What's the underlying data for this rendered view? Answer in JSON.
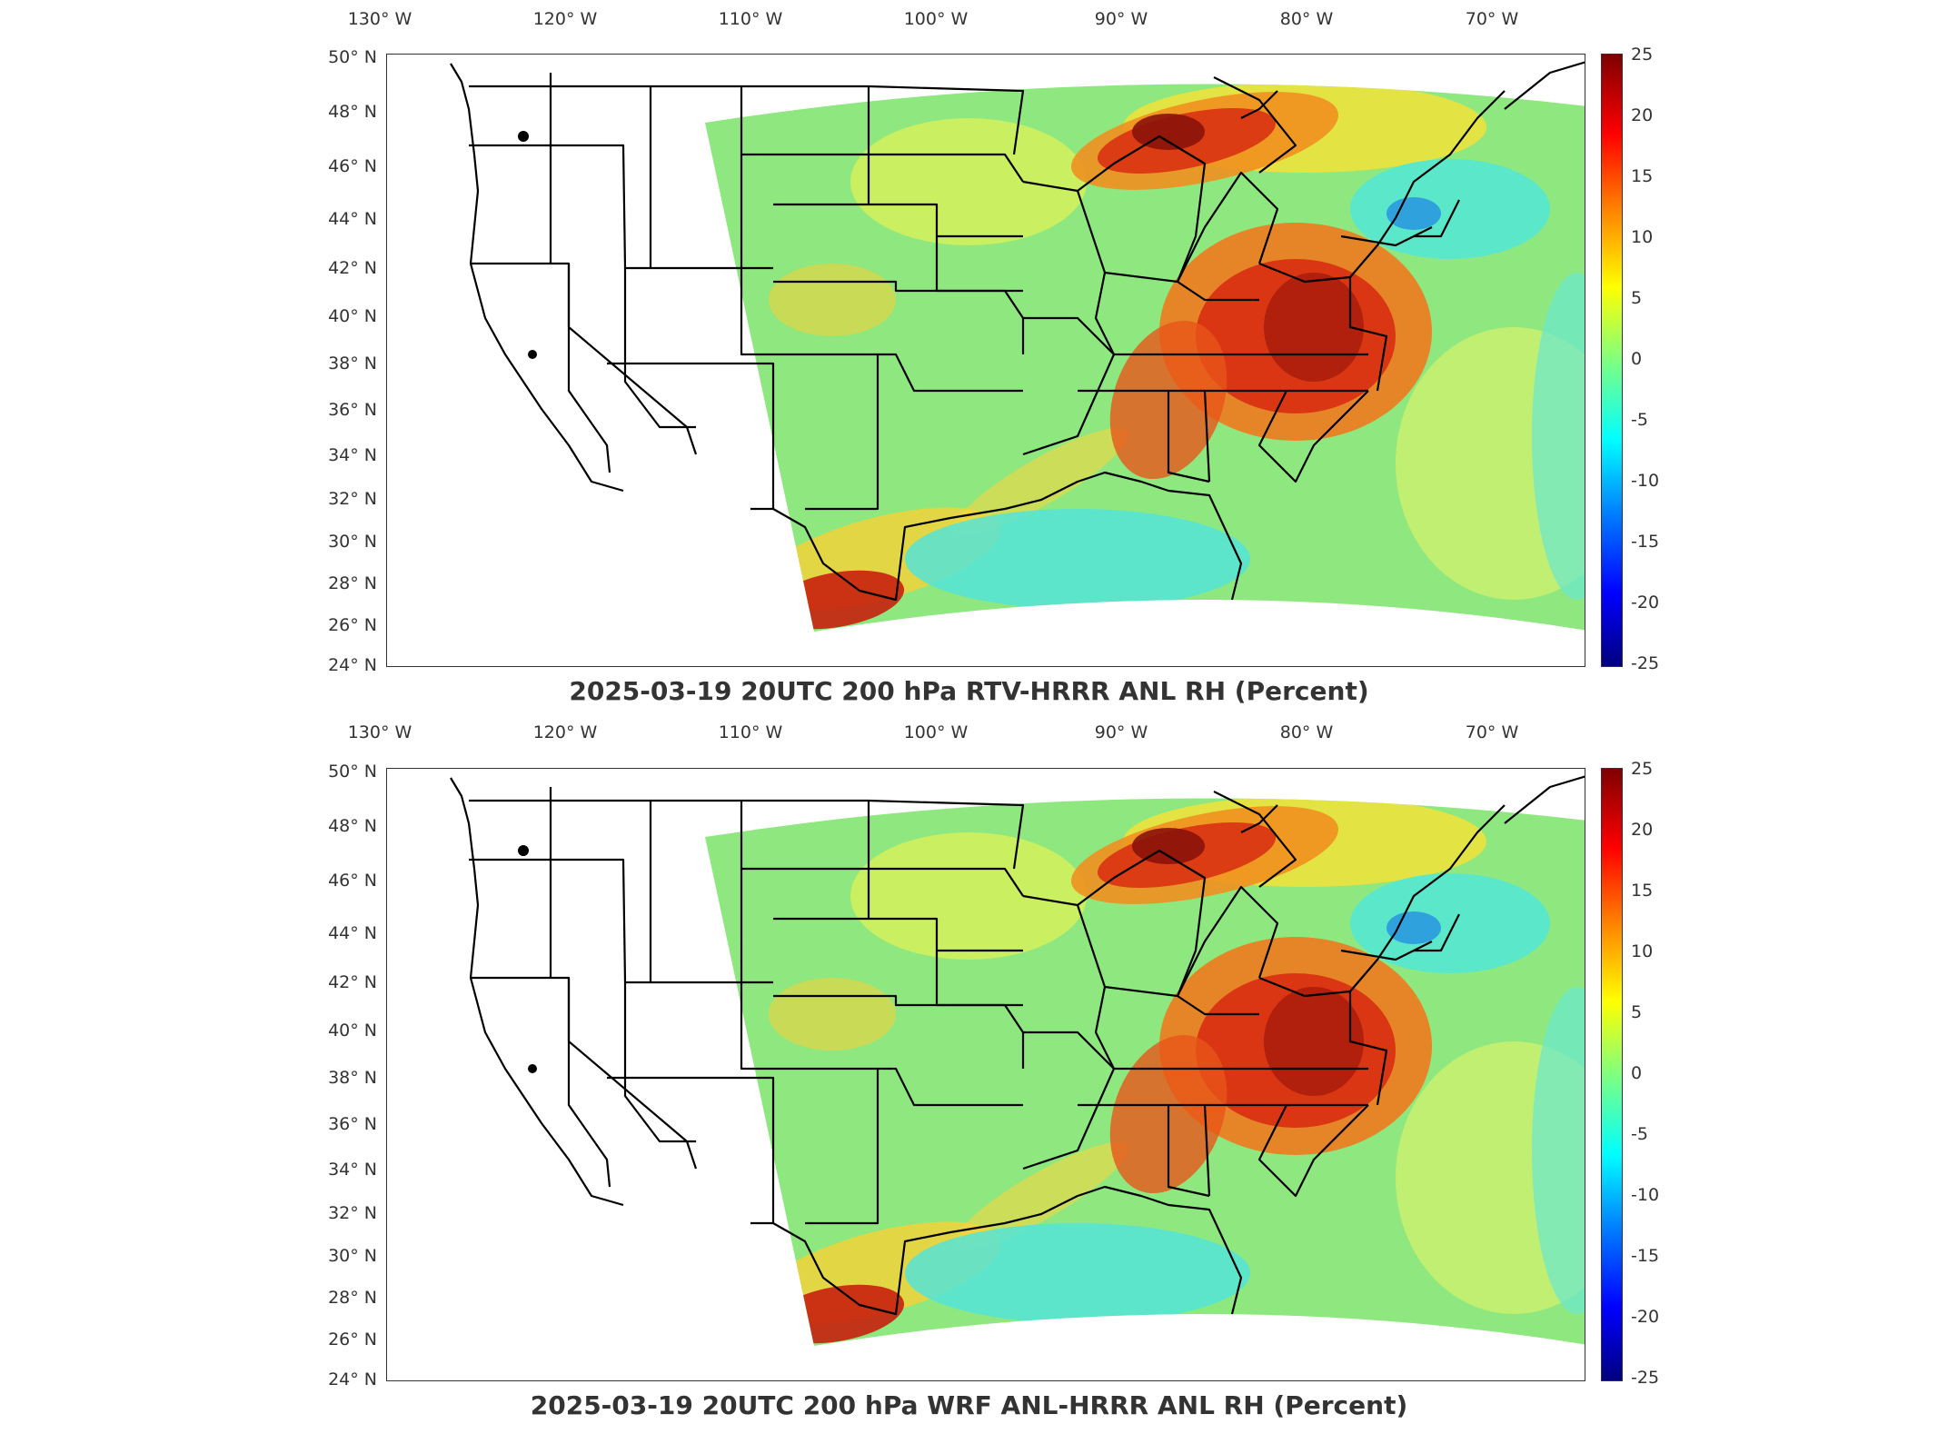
{
  "panels": [
    {
      "title": "2025-03-19 20UTC 200 hPa RTV-HRRR ANL RH (Percent)",
      "lon_labels": [
        "130° W",
        "120° W",
        "110° W",
        "100° W",
        "90° W",
        "80° W",
        "70° W"
      ],
      "lat_labels": [
        "50° N",
        "48° N",
        "46° N",
        "44° N",
        "42° N",
        "40° N",
        "38° N",
        "36° N",
        "34° N",
        "32° N",
        "30° N",
        "28° N",
        "26° N",
        "24° N"
      ],
      "colorbar_ticks": [
        "25",
        "20",
        "15",
        "10",
        "5",
        "0",
        "-5",
        "-10",
        "-15",
        "-20",
        "-25"
      ]
    },
    {
      "title": "2025-03-19 20UTC 200 hPa WRF ANL-HRRR ANL RH (Percent)",
      "lon_labels": [
        "130° W",
        "120° W",
        "110° W",
        "100° W",
        "90° W",
        "80° W",
        "70° W"
      ],
      "lat_labels": [
        "50° N",
        "48° N",
        "46° N",
        "44° N",
        "42° N",
        "40° N",
        "38° N",
        "36° N",
        "34° N",
        "32° N",
        "30° N",
        "28° N",
        "26° N",
        "24° N"
      ],
      "colorbar_ticks": [
        "25",
        "20",
        "15",
        "10",
        "5",
        "0",
        "-5",
        "-10",
        "-15",
        "-20",
        "-25"
      ]
    }
  ],
  "colorbar": {
    "min": -25,
    "max": 25,
    "colormap": "jet"
  }
}
